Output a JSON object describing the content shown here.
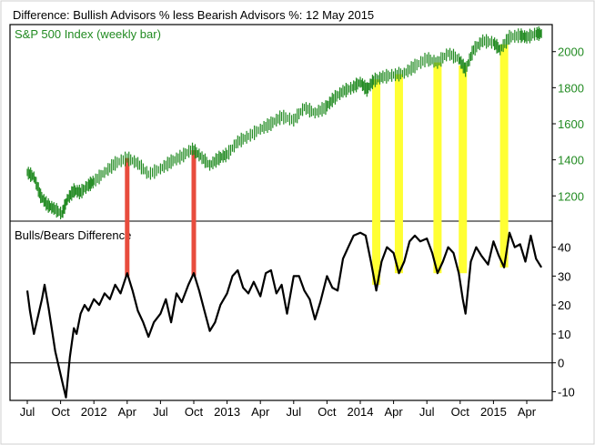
{
  "chart_data": {
    "type": "line",
    "title": "Difference: Bullish Advisors % less Bearish Advisors %: 12 May 2015",
    "x_ticks": [
      "Jul",
      "Oct",
      "2012",
      "Apr",
      "Jul",
      "Oct",
      "2013",
      "Apr",
      "Jul",
      "Oct",
      "2014",
      "Apr",
      "Jul",
      "Oct",
      "2015",
      "Apr"
    ],
    "upper_panel": {
      "title": "S&P 500 Index (weekly bar)",
      "y_ticks": [
        "1200",
        "1400",
        "1600",
        "1800",
        "2000"
      ],
      "ylim": [
        1060,
        2150
      ],
      "color": "#228B22",
      "series": [
        {
          "x": 2011.5,
          "y": 1330
        },
        {
          "x": 2011.55,
          "y": 1305
        },
        {
          "x": 2011.6,
          "y": 1200
        },
        {
          "x": 2011.65,
          "y": 1150
        },
        {
          "x": 2011.7,
          "y": 1130
        },
        {
          "x": 2011.76,
          "y": 1100
        },
        {
          "x": 2011.8,
          "y": 1180
        },
        {
          "x": 2011.85,
          "y": 1230
        },
        {
          "x": 2011.9,
          "y": 1220
        },
        {
          "x": 2011.96,
          "y": 1260
        },
        {
          "x": 2012.0,
          "y": 1280
        },
        {
          "x": 2012.08,
          "y": 1330
        },
        {
          "x": 2012.16,
          "y": 1380
        },
        {
          "x": 2012.25,
          "y": 1410
        },
        {
          "x": 2012.33,
          "y": 1380
        },
        {
          "x": 2012.41,
          "y": 1320
        },
        {
          "x": 2012.5,
          "y": 1350
        },
        {
          "x": 2012.58,
          "y": 1390
        },
        {
          "x": 2012.66,
          "y": 1420
        },
        {
          "x": 2012.74,
          "y": 1460
        },
        {
          "x": 2012.8,
          "y": 1420
        },
        {
          "x": 2012.87,
          "y": 1370
        },
        {
          "x": 2012.94,
          "y": 1410
        },
        {
          "x": 2013.0,
          "y": 1430
        },
        {
          "x": 2013.08,
          "y": 1500
        },
        {
          "x": 2013.16,
          "y": 1530
        },
        {
          "x": 2013.25,
          "y": 1570
        },
        {
          "x": 2013.33,
          "y": 1600
        },
        {
          "x": 2013.41,
          "y": 1640
        },
        {
          "x": 2013.5,
          "y": 1620
        },
        {
          "x": 2013.58,
          "y": 1690
        },
        {
          "x": 2013.66,
          "y": 1660
        },
        {
          "x": 2013.74,
          "y": 1690
        },
        {
          "x": 2013.8,
          "y": 1740
        },
        {
          "x": 2013.87,
          "y": 1780
        },
        {
          "x": 2013.94,
          "y": 1800
        },
        {
          "x": 2014.0,
          "y": 1830
        },
        {
          "x": 2014.05,
          "y": 1790
        },
        {
          "x": 2014.1,
          "y": 1840
        },
        {
          "x": 2014.17,
          "y": 1860
        },
        {
          "x": 2014.25,
          "y": 1870
        },
        {
          "x": 2014.33,
          "y": 1880
        },
        {
          "x": 2014.41,
          "y": 1920
        },
        {
          "x": 2014.5,
          "y": 1960
        },
        {
          "x": 2014.58,
          "y": 1940
        },
        {
          "x": 2014.66,
          "y": 1990
        },
        {
          "x": 2014.74,
          "y": 1960
        },
        {
          "x": 2014.79,
          "y": 1900
        },
        {
          "x": 2014.85,
          "y": 2010
        },
        {
          "x": 2014.92,
          "y": 2060
        },
        {
          "x": 2015.0,
          "y": 2050
        },
        {
          "x": 2015.05,
          "y": 2010
        },
        {
          "x": 2015.12,
          "y": 2080
        },
        {
          "x": 2015.2,
          "y": 2090
        },
        {
          "x": 2015.25,
          "y": 2080
        },
        {
          "x": 2015.32,
          "y": 2100
        },
        {
          "x": 2015.36,
          "y": 2100
        }
      ]
    },
    "lower_panel": {
      "title": "Bulls/Bears Difference",
      "y_ticks": [
        "-10",
        "0",
        "10",
        "20",
        "30",
        "40"
      ],
      "ylim": [
        -13,
        49
      ],
      "color": "#000000",
      "zero_line": true,
      "series": [
        {
          "x": 2011.5,
          "y": 25
        },
        {
          "x": 2011.52,
          "y": 18
        },
        {
          "x": 2011.55,
          "y": 10
        },
        {
          "x": 2011.58,
          "y": 16
        },
        {
          "x": 2011.61,
          "y": 22
        },
        {
          "x": 2011.63,
          "y": 27
        },
        {
          "x": 2011.66,
          "y": 19
        },
        {
          "x": 2011.69,
          "y": 10
        },
        {
          "x": 2011.71,
          "y": 4
        },
        {
          "x": 2011.74,
          "y": -2
        },
        {
          "x": 2011.77,
          "y": -8
        },
        {
          "x": 2011.79,
          "y": -12
        },
        {
          "x": 2011.82,
          "y": 2
        },
        {
          "x": 2011.85,
          "y": 12
        },
        {
          "x": 2011.87,
          "y": 10
        },
        {
          "x": 2011.9,
          "y": 17
        },
        {
          "x": 2011.93,
          "y": 20
        },
        {
          "x": 2011.96,
          "y": 18
        },
        {
          "x": 2012.0,
          "y": 22
        },
        {
          "x": 2012.04,
          "y": 20
        },
        {
          "x": 2012.08,
          "y": 24
        },
        {
          "x": 2012.12,
          "y": 22
        },
        {
          "x": 2012.16,
          "y": 27
        },
        {
          "x": 2012.2,
          "y": 24
        },
        {
          "x": 2012.25,
          "y": 31
        },
        {
          "x": 2012.29,
          "y": 25
        },
        {
          "x": 2012.33,
          "y": 18
        },
        {
          "x": 2012.37,
          "y": 14
        },
        {
          "x": 2012.41,
          "y": 9
        },
        {
          "x": 2012.45,
          "y": 14
        },
        {
          "x": 2012.5,
          "y": 17
        },
        {
          "x": 2012.54,
          "y": 22
        },
        {
          "x": 2012.58,
          "y": 14
        },
        {
          "x": 2012.62,
          "y": 24
        },
        {
          "x": 2012.66,
          "y": 21
        },
        {
          "x": 2012.71,
          "y": 27
        },
        {
          "x": 2012.75,
          "y": 31
        },
        {
          "x": 2012.79,
          "y": 25
        },
        {
          "x": 2012.83,
          "y": 18
        },
        {
          "x": 2012.87,
          "y": 11
        },
        {
          "x": 2012.91,
          "y": 14
        },
        {
          "x": 2012.95,
          "y": 20
        },
        {
          "x": 2013.0,
          "y": 24
        },
        {
          "x": 2013.04,
          "y": 30
        },
        {
          "x": 2013.08,
          "y": 32
        },
        {
          "x": 2013.12,
          "y": 26
        },
        {
          "x": 2013.16,
          "y": 24
        },
        {
          "x": 2013.2,
          "y": 28
        },
        {
          "x": 2013.25,
          "y": 23
        },
        {
          "x": 2013.29,
          "y": 31
        },
        {
          "x": 2013.33,
          "y": 32
        },
        {
          "x": 2013.37,
          "y": 24
        },
        {
          "x": 2013.41,
          "y": 27
        },
        {
          "x": 2013.45,
          "y": 17
        },
        {
          "x": 2013.5,
          "y": 30
        },
        {
          "x": 2013.54,
          "y": 30
        },
        {
          "x": 2013.58,
          "y": 25
        },
        {
          "x": 2013.62,
          "y": 22
        },
        {
          "x": 2013.66,
          "y": 15
        },
        {
          "x": 2013.7,
          "y": 21
        },
        {
          "x": 2013.75,
          "y": 30
        },
        {
          "x": 2013.79,
          "y": 26
        },
        {
          "x": 2013.83,
          "y": 25
        },
        {
          "x": 2013.87,
          "y": 36
        },
        {
          "x": 2013.91,
          "y": 40
        },
        {
          "x": 2013.95,
          "y": 44
        },
        {
          "x": 2014.0,
          "y": 45
        },
        {
          "x": 2014.04,
          "y": 44
        },
        {
          "x": 2014.08,
          "y": 35
        },
        {
          "x": 2014.12,
          "y": 25
        },
        {
          "x": 2014.16,
          "y": 35
        },
        {
          "x": 2014.2,
          "y": 40
        },
        {
          "x": 2014.25,
          "y": 38
        },
        {
          "x": 2014.29,
          "y": 31
        },
        {
          "x": 2014.33,
          "y": 35
        },
        {
          "x": 2014.37,
          "y": 42
        },
        {
          "x": 2014.41,
          "y": 44
        },
        {
          "x": 2014.45,
          "y": 42
        },
        {
          "x": 2014.5,
          "y": 43
        },
        {
          "x": 2014.54,
          "y": 38
        },
        {
          "x": 2014.58,
          "y": 31
        },
        {
          "x": 2014.62,
          "y": 35
        },
        {
          "x": 2014.66,
          "y": 40
        },
        {
          "x": 2014.7,
          "y": 38
        },
        {
          "x": 2014.74,
          "y": 31
        },
        {
          "x": 2014.77,
          "y": 22
        },
        {
          "x": 2014.79,
          "y": 17
        },
        {
          "x": 2014.83,
          "y": 35
        },
        {
          "x": 2014.87,
          "y": 40
        },
        {
          "x": 2014.91,
          "y": 37
        },
        {
          "x": 2014.96,
          "y": 34
        },
        {
          "x": 2015.0,
          "y": 42
        },
        {
          "x": 2015.04,
          "y": 37
        },
        {
          "x": 2015.08,
          "y": 33
        },
        {
          "x": 2015.12,
          "y": 45
        },
        {
          "x": 2015.16,
          "y": 40
        },
        {
          "x": 2015.2,
          "y": 41
        },
        {
          "x": 2015.24,
          "y": 35
        },
        {
          "x": 2015.28,
          "y": 44
        },
        {
          "x": 2015.32,
          "y": 36
        },
        {
          "x": 2015.36,
          "y": 33
        }
      ]
    },
    "highlights": [
      {
        "color": "#E84C3D",
        "x": 2012.25,
        "to_y": 30
      },
      {
        "color": "#E84C3D",
        "x": 2012.75,
        "to_y": 30
      },
      {
        "color": "#FFFF33",
        "x": 2014.12,
        "to_y": 27
      },
      {
        "color": "#FFFF33",
        "x": 2014.29,
        "to_y": 31
      },
      {
        "color": "#FFFF33",
        "x": 2014.58,
        "to_y": 31
      },
      {
        "color": "#FFFF33",
        "x": 2014.77,
        "to_y": 31
      },
      {
        "color": "#FFFF33",
        "x": 2015.08,
        "to_y": 33
      }
    ]
  }
}
